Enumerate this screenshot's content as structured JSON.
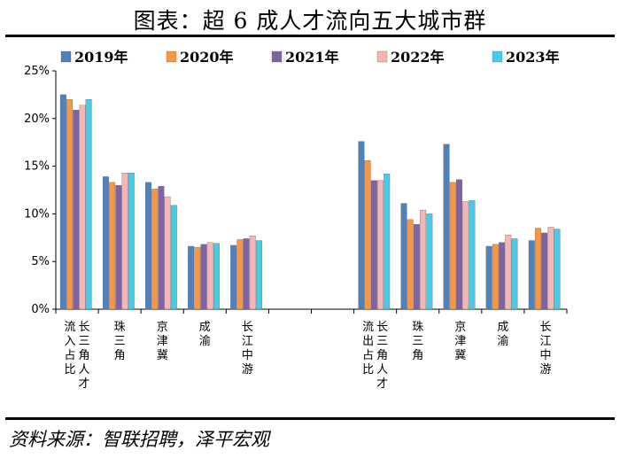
{
  "title": "图表：超 6 成人才流向五大城市群",
  "source": "资料来源：智联招聘，泽平宏观",
  "chart_data": {
    "type": "bar",
    "title": "图表：超 6 成人才流向五大城市群",
    "ylim": [
      0,
      25
    ],
    "yticks": [
      "0%",
      "5%",
      "10%",
      "15%",
      "20%",
      "25%"
    ],
    "yticks_values": [
      0,
      5,
      10,
      15,
      20,
      25
    ],
    "legend_position": "top",
    "grid": false,
    "groups": [
      {
        "name": "长三角人才流入占比",
        "categories": [
          "长三角人才流入占比",
          "珠三角",
          "京津冀",
          "成渝",
          "长江中游"
        ]
      },
      {
        "name": "长三角人才流出占比",
        "categories": [
          "长三角人才流出占比",
          "珠三角",
          "京津冀",
          "成渝",
          "长江中游"
        ]
      }
    ],
    "series": [
      {
        "name": "2019年",
        "color": "#4F81BD",
        "values": [
          22.5,
          13.9,
          13.3,
          6.6,
          6.7,
          17.6,
          11.1,
          17.3,
          6.6,
          7.2
        ]
      },
      {
        "name": "2020年",
        "color": "#F79646",
        "values": [
          22.0,
          13.3,
          12.6,
          6.5,
          7.3,
          15.6,
          9.4,
          13.3,
          6.8,
          8.5
        ]
      },
      {
        "name": "2021年",
        "color": "#8064A2",
        "values": [
          20.9,
          13.0,
          12.9,
          6.8,
          7.4,
          13.5,
          8.9,
          13.6,
          7.0,
          8.0
        ]
      },
      {
        "name": "2022年",
        "color": "#F2B8B8",
        "values": [
          21.4,
          14.3,
          11.8,
          7.0,
          7.7,
          13.5,
          10.4,
          11.3,
          7.8,
          8.6
        ]
      },
      {
        "name": "2023年",
        "color": "#4BC9E8",
        "values": [
          22.0,
          14.3,
          10.9,
          6.9,
          7.2,
          14.2,
          10.0,
          11.4,
          7.4,
          8.4
        ]
      }
    ],
    "category_labels": [
      "长三角人才流入占比",
      "珠三角",
      "京津冀",
      "成渝",
      "长江中游",
      "长三角人才流出占比",
      "珠三角",
      "京津冀",
      "成渝",
      "长江中游"
    ],
    "category_label_lines": [
      [
        "长三角人才",
        "流入占比"
      ],
      [
        "珠三角"
      ],
      [
        "京津冀"
      ],
      [
        "成渝"
      ],
      [
        "长江中游"
      ],
      [
        "长三角人才",
        "流出占比"
      ],
      [
        "珠三角"
      ],
      [
        "京津冀"
      ],
      [
        "成渝"
      ],
      [
        "长江中游"
      ]
    ]
  }
}
